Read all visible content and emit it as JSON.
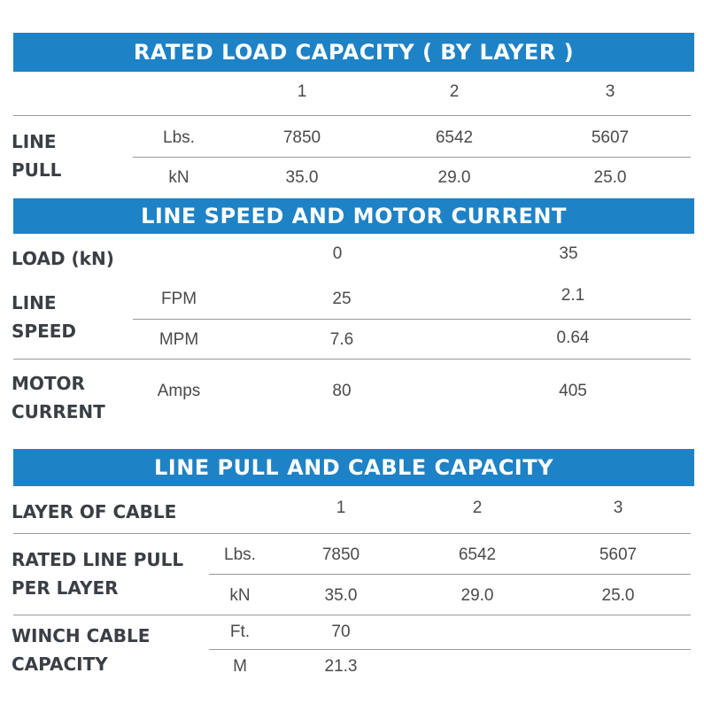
{
  "section1": {
    "title": "RATED LOAD CAPACITY ( BY LAYER )",
    "layers": [
      "1",
      "2",
      "3"
    ],
    "line_pull_label": [
      "LINE",
      "PULL"
    ],
    "lbs_unit": "Lbs.",
    "lbs_values": [
      "7850",
      "6542",
      "5607"
    ],
    "kn_unit": "kN",
    "kn_values": [
      "35.0",
      "29.0",
      "25.0"
    ]
  },
  "section2": {
    "title": "LINE SPEED AND MOTOR CURRENT",
    "load_label": "LOAD (kN)",
    "load_values": [
      "0",
      "35"
    ],
    "line_speed_label": [
      "LINE",
      "SPEED"
    ],
    "fpm_unit": "FPM",
    "fpm_values": [
      "25",
      "2.1"
    ],
    "mpm_unit": "MPM",
    "mpm_values": [
      "7.6",
      "0.64"
    ],
    "motor_current_label": [
      "MOTOR",
      "CURRENT"
    ],
    "amps_unit": "Amps",
    "amps_values": [
      "80",
      "405"
    ]
  },
  "section3": {
    "title": "LINE PULL AND CABLE CAPACITY",
    "layer_label": "LAYER OF CABLE",
    "layers": [
      "1",
      "2",
      "3"
    ],
    "rated_label": [
      "RATED LINE PULL",
      "PER LAYER"
    ],
    "lbs_unit": "Lbs.",
    "lbs_values": [
      "7850",
      "6542",
      "5607"
    ],
    "kn_unit": "kN",
    "kn_values": [
      "35.0",
      "29.0",
      "25.0"
    ],
    "capacity_label": [
      "WINCH CABLE",
      "CAPACITY"
    ],
    "ft_unit": "Ft.",
    "ft_value": "70",
    "m_unit": "M",
    "m_value": "21.3"
  }
}
